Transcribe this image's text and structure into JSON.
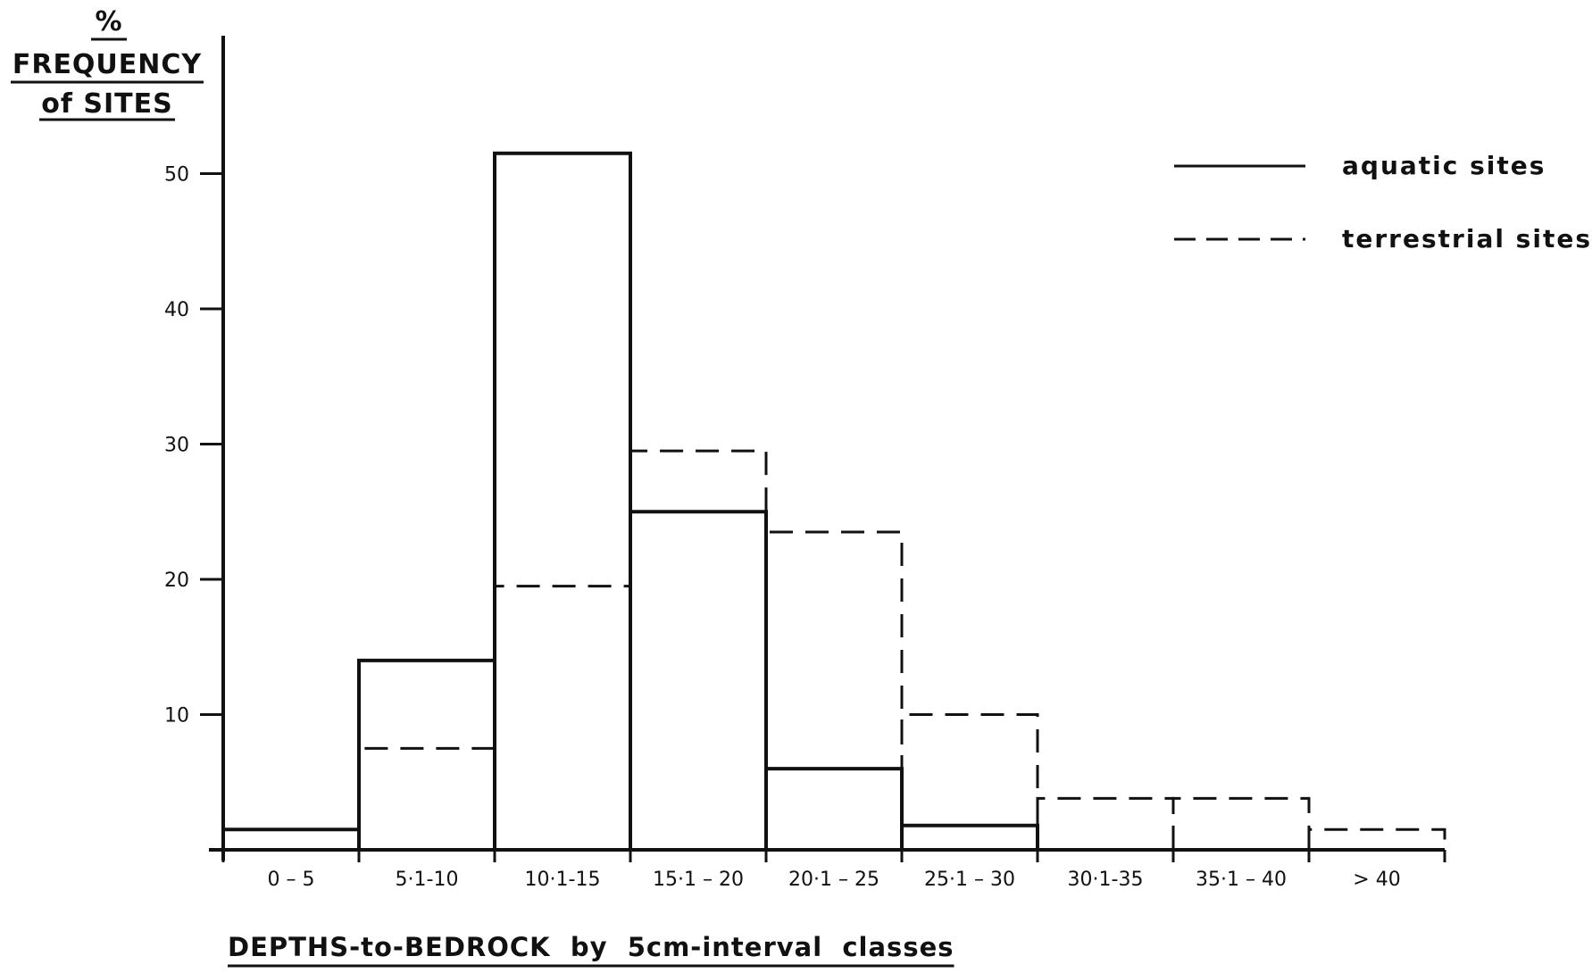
{
  "chart_data": {
    "type": "bar",
    "title": "",
    "ylabel_lines": [
      "%",
      "FREQUENCY",
      "of SITES"
    ],
    "xlabel": "DEPTHS-to-BEDROCK  by  5cm-interval  classes",
    "categories": [
      "0 – 5",
      "5·1-10",
      "10·1-15",
      "15·1 – 20",
      "20·1 – 25",
      "25·1 – 30",
      "30·1-35",
      "35·1 – 40",
      "> 40"
    ],
    "yticks": [
      10,
      20,
      30,
      40,
      50
    ],
    "ylim": [
      0,
      55
    ],
    "grid": false,
    "legend_position": "top-right",
    "series": [
      {
        "name": "aquatic sites",
        "line_style": "solid",
        "values": [
          1.5,
          14,
          51.5,
          25,
          6,
          1.8,
          0,
          0,
          0
        ]
      },
      {
        "name": "terrestrial sites",
        "line_style": "dashed",
        "values": [
          0,
          7.5,
          19.5,
          29.5,
          23.5,
          10,
          3.8,
          3.8,
          1.5
        ]
      }
    ],
    "colors": {
      "ink": "#111111",
      "background": "#ffffff"
    }
  }
}
